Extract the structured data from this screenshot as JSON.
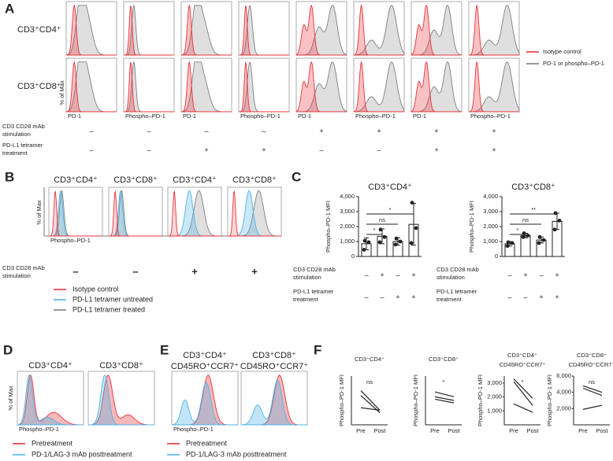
{
  "A": {
    "label": "A",
    "rows": [
      "CD3⁺CD4⁺",
      "CD3⁺CD8⁺"
    ],
    "y_label": "% of Max",
    "x_labels": [
      "PD-1",
      "Phospho–PD-1",
      "PD-1",
      "Phospho–PD-1",
      "PD-1",
      "Phospho–PD-1",
      "PD-1",
      "Phospho–PD-1"
    ],
    "conditions": [
      {
        "lines": [
          "CD3 CD28 mAb",
          "stimulation"
        ],
        "signs": [
          "–",
          "–",
          "–",
          "–",
          "+",
          "+",
          "+",
          "+"
        ]
      },
      {
        "lines": [
          "PD-L1 tetramer",
          "treatment"
        ],
        "signs": [
          "–",
          "–",
          "+",
          "+",
          "–",
          "–",
          "+",
          "+"
        ]
      }
    ],
    "legend": [
      {
        "name": "Isotype control",
        "color": "#e8333a"
      },
      {
        "name": "PD-1 or phospho–PD-1",
        "color": "#7f7f7f"
      }
    ]
  },
  "B": {
    "label": "B",
    "titles": [
      "CD3⁺CD4⁺",
      "CD3⁺CD8⁺",
      "CD3⁺CD4⁺",
      "CD3⁺CD8⁺"
    ],
    "y_label": "% of Max",
    "x_label": "Phospho–PD-1",
    "conditions": [
      {
        "lines": [
          "CD3 CD28 mAb",
          "stimulation"
        ],
        "signs": [
          "–",
          "–",
          "+",
          "+"
        ]
      }
    ],
    "legend": [
      {
        "name": "Isotype control",
        "color": "#e8333a"
      },
      {
        "name": "PD-L1 tetramer untreated",
        "color": "#4fb3e6"
      },
      {
        "name": "PD-L1 tetramer treated",
        "color": "#7f7f7f"
      }
    ]
  },
  "C": {
    "label": "C",
    "charts": [
      {
        "title": "CD3⁺CD4⁺",
        "y_label": "Phospho–PD-1 MFI",
        "ylim": [
          0,
          4000
        ],
        "yticks": [
          0,
          {
            "value": 1000,
            "label": "1,000"
          },
          {
            "value": 2000,
            "label": "2,000"
          },
          {
            "value": 3000,
            "label": "3,000"
          },
          {
            "value": 4000,
            "label": "4,000"
          }
        ],
        "values": [
          850,
          1350,
          1000,
          2150
        ],
        "errors": [
          400,
          500,
          250,
          1400
        ],
        "points": [
          [
            1050,
            950,
            450
          ],
          [
            1800,
            1300,
            950
          ],
          [
            1200,
            1000,
            800
          ],
          [
            3600,
            1900,
            900
          ]
        ],
        "significance": [
          "*",
          "ns",
          "*"
        ],
        "conditions": [
          {
            "lines": [
              "CD3 CD28 mAb",
              "stimulation"
            ],
            "signs": [
              "–",
              "+",
              "–",
              "+"
            ]
          },
          {
            "lines": [
              "PD-L1 tetramer",
              "treatment"
            ],
            "signs": [
              "–",
              "–",
              "+",
              "+"
            ]
          }
        ]
      },
      {
        "title": "CD3⁺CD8⁺",
        "y_label": "Phospho–PD-1 MFI",
        "ylim": [
          0,
          4000
        ],
        "yticks": [
          0,
          {
            "value": 1000,
            "label": "1,000"
          },
          {
            "value": 2000,
            "label": "2,000"
          },
          {
            "value": 3000,
            "label": "3,000"
          },
          {
            "value": 4000,
            "label": "4,000"
          }
        ],
        "values": [
          850,
          1400,
          1100,
          2350
        ],
        "errors": [
          150,
          150,
          200,
          550
        ],
        "points": [
          [
            950,
            900,
            700
          ],
          [
            1550,
            1400,
            1300
          ],
          [
            1300,
            1100,
            900
          ],
          [
            2900,
            2400,
            1800
          ]
        ],
        "significance": [
          "*",
          "ns",
          "**"
        ],
        "conditions": [
          {
            "lines": [
              "CD3 CD28 mAb",
              "stimulation"
            ],
            "signs": [
              "–",
              "+",
              "–",
              "+"
            ]
          },
          {
            "lines": [
              "PD-L1 tetramer",
              "treatment"
            ],
            "signs": [
              "–",
              "–",
              "+",
              "+"
            ]
          }
        ]
      }
    ]
  },
  "D": {
    "label": "D",
    "titles": [
      "CD3⁺CD4⁺",
      "CD3⁺CD8⁺"
    ],
    "y_label": "% of Max",
    "x_label": "Phospho–PD-1",
    "legend": [
      {
        "name": "Pretreatment",
        "color": "#e8333a"
      },
      {
        "name": "PD-1/LAG-3 mAb posttreatment",
        "color": "#4fb3e6"
      }
    ]
  },
  "E": {
    "label": "E",
    "titles": [
      [
        "CD3⁺CD4⁺",
        "CD45RO⁺CCR7⁺"
      ],
      [
        "CD3⁺CD8⁺",
        "CD45RO⁺CCR7⁺"
      ]
    ],
    "x_label": "Phospho–PD-1",
    "legend": [
      {
        "name": "Pretreatment",
        "color": "#e8333a"
      },
      {
        "name": "PD-1/LAG-3 mAb posttreatment",
        "color": "#4fb3e6"
      }
    ]
  },
  "F": {
    "label": "F",
    "plots": [
      {
        "title": [
          "CD3⁺CD4⁺"
        ],
        "y_label": "Phospho–PD-1 MFI",
        "categories": [
          "Pre",
          "Post"
        ],
        "ylim": [
          0,
          2000
        ],
        "subjects": [
          [
            1400,
            600
          ],
          [
            700,
            600
          ],
          [
            1200,
            500
          ]
        ],
        "significance": "ns"
      },
      {
        "title": [
          "CD3⁺CD8⁺"
        ],
        "y_label": "Phospho–PD-1 MFI",
        "categories": [
          "Pre",
          "Post"
        ],
        "ylim": [
          0,
          4000
        ],
        "subjects": [
          [
            2700,
            2300
          ],
          [
            2300,
            2000
          ],
          [
            2100,
            1800
          ]
        ],
        "significance": "*"
      },
      {
        "title": [
          "CD3⁺CD4⁺",
          "CD45RO⁺CCR7⁺"
        ],
        "y_label": "Phospho–PD-1 MFI",
        "categories": [
          "Pre",
          "Post"
        ],
        "ylim": [
          0,
          3500
        ],
        "yticks": [
          {
            "value": 1000,
            "label": "1,000"
          },
          {
            "value": 2000,
            "label": "2,000"
          },
          {
            "value": 3000,
            "label": "3,000"
          }
        ],
        "subjects": [
          [
            3300,
            1900
          ],
          [
            3100,
            1400
          ],
          [
            1500,
            900
          ]
        ],
        "significance": "*"
      },
      {
        "title": [
          "CD3⁺CD8⁺",
          "CD45RO⁺CCR7⁺"
        ],
        "y_label": "Phospho–PD-1 MFI",
        "categories": [
          "Pre",
          "Post"
        ],
        "ylim": [
          0,
          6000
        ],
        "yticks": [
          {
            "value": 2000,
            "label": "2,000"
          },
          {
            "value": 4000,
            "label": "4,000"
          },
          {
            "value": 6000,
            "label": "6,000"
          }
        ],
        "subjects": [
          [
            4800,
            4000
          ],
          [
            4500,
            3600
          ],
          [
            1900,
            2400
          ]
        ],
        "significance": "ns"
      }
    ]
  }
}
